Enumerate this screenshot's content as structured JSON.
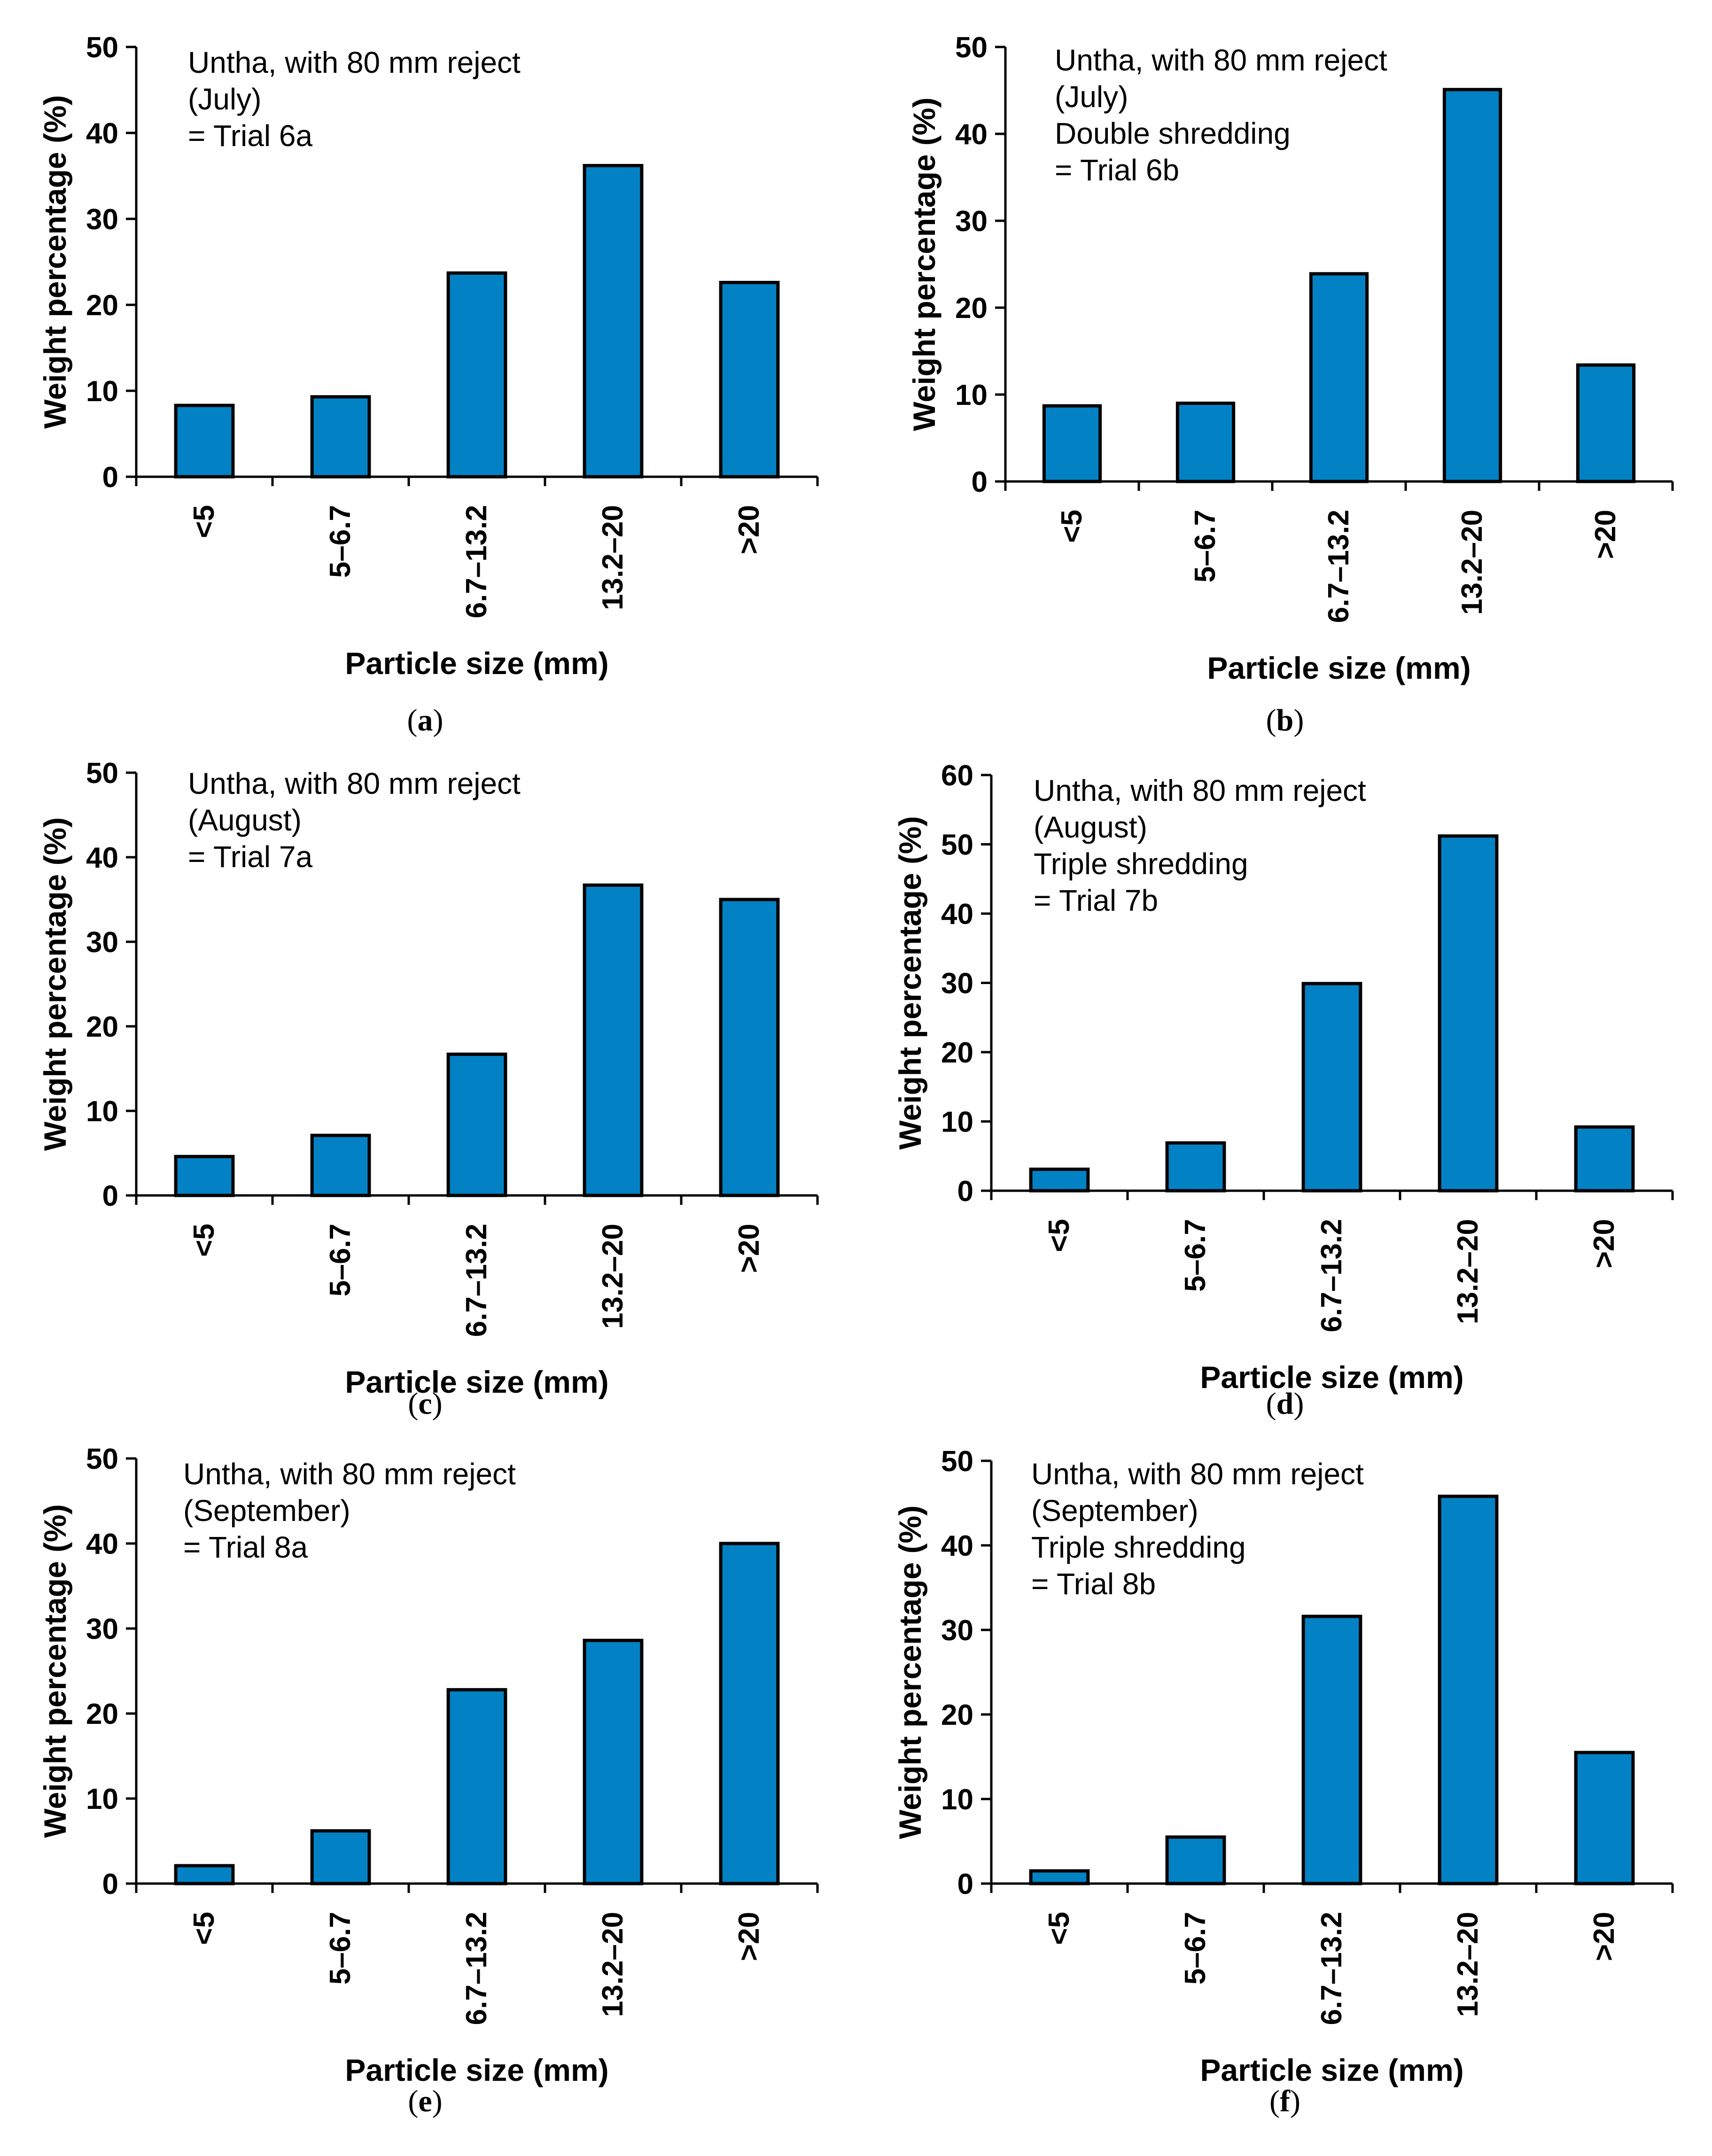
{
  "chart_data": [
    {
      "id": "a",
      "type": "bar",
      "caption_letter": "a",
      "annotation": [
        "Untha, with 80 mm reject",
        "(July)",
        "= Trial 6a"
      ],
      "categories": [
        "<5",
        "5–6.7",
        "6.7–13.2",
        "13.2–20",
        ">20"
      ],
      "values": [
        8.3,
        9.3,
        23.7,
        36.2,
        22.6
      ],
      "xlabel": "Particle size (mm)",
      "ylabel": "Weight percentage (%)",
      "ylim": [
        0,
        50
      ],
      "yticks": [
        0,
        10,
        20,
        30,
        40,
        50
      ],
      "color": "#0282c4"
    },
    {
      "id": "b",
      "type": "bar",
      "caption_letter": "b",
      "annotation": [
        "Untha, with 80 mm reject",
        "(July)",
        "Double shredding",
        "= Trial 6b"
      ],
      "categories": [
        "<5",
        "5–6.7",
        "6.7–13.2",
        "13.2–20",
        ">20"
      ],
      "values": [
        8.7,
        9.0,
        23.9,
        45.1,
        13.4
      ],
      "xlabel": "Particle size (mm)",
      "ylabel": "Weight percentage (%)",
      "ylim": [
        0,
        50
      ],
      "yticks": [
        0,
        10,
        20,
        30,
        40,
        50
      ],
      "color": "#0282c4"
    },
    {
      "id": "c",
      "type": "bar",
      "caption_letter": "c",
      "annotation": [
        "Untha, with 80 mm reject",
        "(August)",
        "= Trial 7a"
      ],
      "categories": [
        "<5",
        "5–6.7",
        "6.7–13.2",
        "13.2–20",
        ">20"
      ],
      "values": [
        4.6,
        7.1,
        16.7,
        36.7,
        35.0
      ],
      "xlabel": "Particle size (mm)",
      "ylabel": "Weight percentage (%)",
      "ylim": [
        0,
        50
      ],
      "yticks": [
        0,
        10,
        20,
        30,
        40,
        50
      ],
      "color": "#0282c4"
    },
    {
      "id": "d",
      "type": "bar",
      "caption_letter": "d",
      "annotation": [
        "Untha, with 80 mm reject",
        "(August)",
        "Triple shredding",
        "= Trial 7b"
      ],
      "categories": [
        "<5",
        "5–6.7",
        "6.7–13.2",
        "13.2–20",
        ">20"
      ],
      "values": [
        3.1,
        6.9,
        29.9,
        51.2,
        9.2
      ],
      "xlabel": "Particle size (mm)",
      "ylabel": "Weight percentage (%)",
      "ylim": [
        0,
        60
      ],
      "yticks": [
        0,
        10,
        20,
        30,
        40,
        50,
        60
      ],
      "color": "#0282c4"
    },
    {
      "id": "e",
      "type": "bar",
      "caption_letter": "e",
      "annotation": [
        "Untha, with 80 mm reject",
        "(September)",
        "= Trial 8a"
      ],
      "categories": [
        "<5",
        "5–6.7",
        "6.7–13.2",
        "13.2–20",
        ">20"
      ],
      "values": [
        2.1,
        6.2,
        22.8,
        28.6,
        40.0
      ],
      "xlabel": "Particle size (mm)",
      "ylabel": "Weight percentage (%)",
      "ylim": [
        0,
        50
      ],
      "yticks": [
        0,
        10,
        20,
        30,
        40,
        50
      ],
      "color": "#0282c4"
    },
    {
      "id": "f",
      "type": "bar",
      "caption_letter": "f",
      "annotation": [
        "Untha, with 80 mm reject",
        "(September)",
        "Triple shredding",
        "= Trial 8b"
      ],
      "categories": [
        "<5",
        "5–6.7",
        "6.7–13.2",
        "13.2–20",
        ">20"
      ],
      "values": [
        1.5,
        5.5,
        31.6,
        45.8,
        15.5
      ],
      "xlabel": "Particle size (mm)",
      "ylabel": "Weight percentage (%)",
      "ylim": [
        0,
        50
      ],
      "yticks": [
        0,
        10,
        20,
        30,
        40,
        50
      ],
      "color": "#0282c4"
    }
  ]
}
